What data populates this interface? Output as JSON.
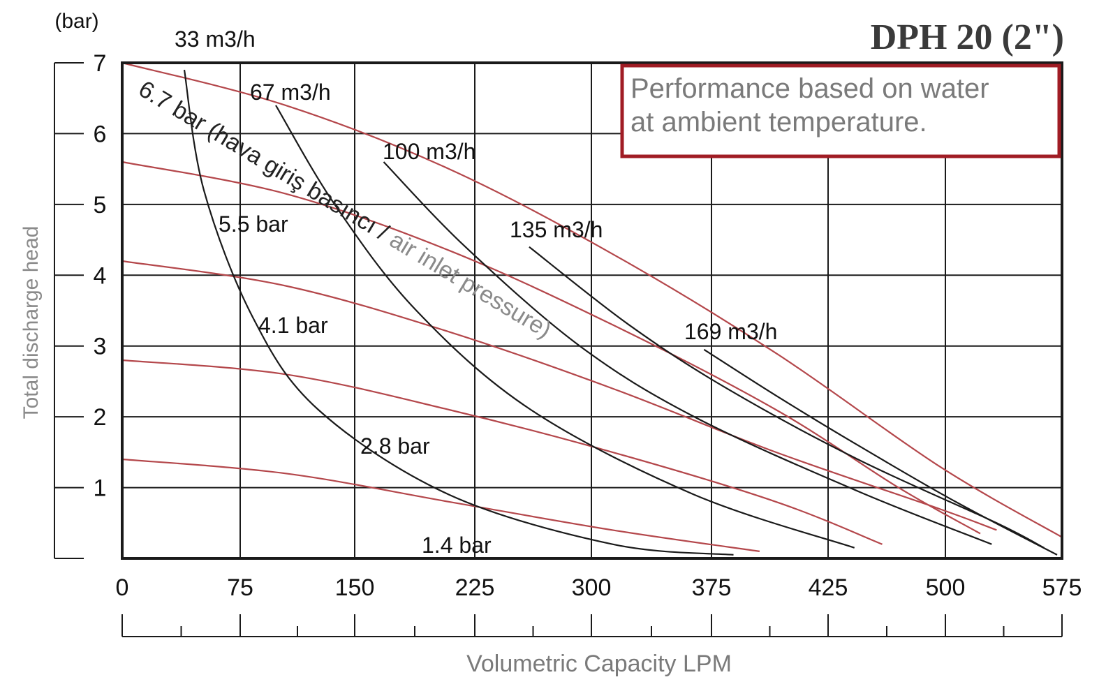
{
  "chart_data": {
    "type": "line",
    "title": "DPH 20 (2\")",
    "note": [
      "Performance based on water",
      "at ambient temperature."
    ],
    "ylabel": "Total discharge head",
    "yunit": "(bar)",
    "xlabel": "Volumetric Capacity LPM",
    "ylim": [
      0,
      7
    ],
    "yticks": [
      "1",
      "2",
      "3",
      "4",
      "5",
      "6",
      "7"
    ],
    "xticks": [
      "0",
      "75",
      "150",
      "225",
      "300",
      "375",
      "425",
      "500",
      "575"
    ],
    "grid": true,
    "pressure_series_label": [
      "6.7 bar (hava giriş basıncı / ",
      "air inlet pressure)"
    ],
    "pressure_series": [
      {
        "name": "6.7 bar",
        "points": [
          [
            0,
            7.0
          ],
          [
            100,
            6.4
          ],
          [
            200,
            5.5
          ],
          [
            300,
            4.3
          ],
          [
            400,
            2.9
          ],
          [
            500,
            1.3
          ],
          [
            575,
            0.3
          ]
        ]
      },
      {
        "name": "5.5 bar",
        "label": "5.5 bar",
        "points": [
          [
            0,
            5.6
          ],
          [
            100,
            5.15
          ],
          [
            200,
            4.35
          ],
          [
            300,
            3.3
          ],
          [
            400,
            2.1
          ],
          [
            475,
            1.0
          ],
          [
            525,
            0.35
          ]
        ]
      },
      {
        "name": "4.1 bar",
        "label": "4.1 bar",
        "points": [
          [
            0,
            4.2
          ],
          [
            100,
            3.85
          ],
          [
            200,
            3.2
          ],
          [
            300,
            2.4
          ],
          [
            400,
            1.5
          ],
          [
            500,
            0.7
          ],
          [
            535,
            0.4
          ]
        ]
      },
      {
        "name": "2.8 bar",
        "label": "2.8 bar",
        "points": [
          [
            0,
            2.8
          ],
          [
            100,
            2.6
          ],
          [
            200,
            2.1
          ],
          [
            300,
            1.5
          ],
          [
            400,
            0.8
          ],
          [
            465,
            0.2
          ]
        ]
      },
      {
        "name": "1.4 bar",
        "label": "1.4 bar",
        "points": [
          [
            0,
            1.4
          ],
          [
            100,
            1.2
          ],
          [
            200,
            0.8
          ],
          [
            300,
            0.4
          ],
          [
            390,
            0.1
          ]
        ]
      }
    ],
    "flow_series": [
      {
        "name": "33 m3/h",
        "label": "33 m3/h",
        "points": [
          [
            38,
            6.9
          ],
          [
            50,
            5.2
          ],
          [
            80,
            3.4
          ],
          [
            120,
            2.1
          ],
          [
            200,
            0.9
          ],
          [
            300,
            0.2
          ],
          [
            374,
            0.05
          ]
        ]
      },
      {
        "name": "67 m3/h",
        "label": "67 m3/h",
        "points": [
          [
            94,
            6.4
          ],
          [
            130,
            5.0
          ],
          [
            180,
            3.5
          ],
          [
            250,
            2.1
          ],
          [
            350,
            0.9
          ],
          [
            448,
            0.15
          ]
        ]
      },
      {
        "name": "100 m3/h",
        "label": "100 m3/h",
        "points": [
          [
            160,
            5.6
          ],
          [
            210,
            4.4
          ],
          [
            280,
            3.0
          ],
          [
            350,
            2.0
          ],
          [
            450,
            0.95
          ],
          [
            532,
            0.2
          ]
        ]
      },
      {
        "name": "135 m3/h",
        "label": "135 m3/h",
        "points": [
          [
            249,
            4.4
          ],
          [
            310,
            3.3
          ],
          [
            370,
            2.4
          ],
          [
            450,
            1.4
          ],
          [
            535,
            0.5
          ],
          [
            564,
            0.15
          ]
        ]
      },
      {
        "name": "169 m3/h",
        "label": "169 m3/h",
        "points": [
          [
            356,
            2.95
          ],
          [
            400,
            2.3
          ],
          [
            450,
            1.6
          ],
          [
            510,
            0.8
          ],
          [
            572,
            0.05
          ]
        ]
      }
    ]
  }
}
